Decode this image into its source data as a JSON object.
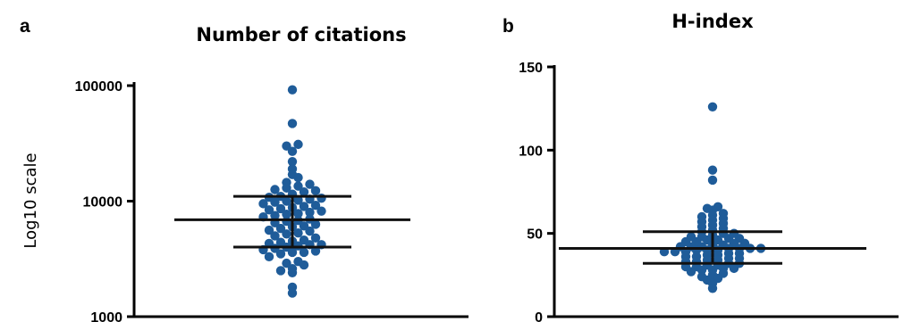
{
  "chart_data": [
    {
      "type": "scatter",
      "panel_label": "a",
      "title": "Number of citations",
      "ylabel": "Log10 scale",
      "xlabel": "",
      "yscale": "log",
      "ylim": [
        1000,
        100000
      ],
      "y_ticks": [
        1000,
        10000,
        100000
      ],
      "y_tick_labels": [
        "1000",
        "10000",
        "100000"
      ],
      "point_color": "#1f5c99",
      "summary": {
        "median": 6900,
        "q1": 4000,
        "q3": 11000
      },
      "values": [
        1600,
        1800,
        2400,
        2500,
        2600,
        2800,
        2900,
        3000,
        3300,
        3500,
        3600,
        3600,
        3700,
        3800,
        3900,
        4000,
        4100,
        4200,
        4200,
        4300,
        4400,
        4500,
        4600,
        4800,
        5000,
        5200,
        5300,
        5500,
        5600,
        5800,
        6000,
        6100,
        6300,
        6500,
        6700,
        6800,
        7000,
        7300,
        7500,
        7700,
        7800,
        8000,
        8200,
        8400,
        8600,
        8800,
        9000,
        9200,
        9500,
        9800,
        10000,
        10200,
        10400,
        10600,
        10800,
        11000,
        11500,
        12000,
        12300,
        12600,
        13000,
        13500,
        14000,
        14500,
        16000,
        17000,
        19000,
        22000,
        27000,
        30000,
        31000,
        47000,
        92000
      ]
    },
    {
      "type": "scatter",
      "panel_label": "b",
      "title": "H-index",
      "ylabel": "",
      "xlabel": "",
      "yscale": "linear",
      "ylim": [
        0,
        150
      ],
      "y_ticks": [
        0,
        50,
        100,
        150
      ],
      "y_tick_labels": [
        "0",
        "50",
        "100",
        "150"
      ],
      "point_color": "#1f5c99",
      "summary": {
        "median": 41,
        "q1": 32,
        "q3": 51
      },
      "values": [
        17,
        20,
        22,
        23,
        24,
        25,
        26,
        27,
        28,
        28,
        29,
        29,
        30,
        30,
        31,
        31,
        32,
        32,
        33,
        33,
        34,
        34,
        35,
        35,
        36,
        36,
        37,
        37,
        38,
        38,
        39,
        39,
        39,
        40,
        40,
        40,
        41,
        41,
        41,
        41,
        42,
        42,
        42,
        43,
        43,
        44,
        44,
        45,
        45,
        46,
        46,
        47,
        47,
        48,
        48,
        49,
        50,
        50,
        51,
        52,
        53,
        54,
        55,
        56,
        57,
        58,
        59,
        60,
        61,
        62,
        64,
        65,
        66,
        82,
        88,
        126
      ]
    }
  ]
}
